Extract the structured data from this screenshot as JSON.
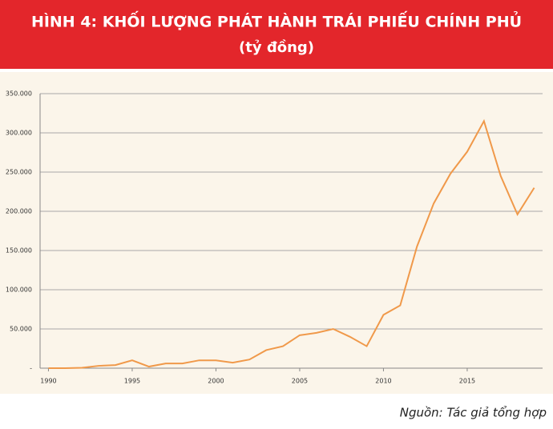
{
  "chart_data": {
    "type": "line",
    "title": "HÌNH 4: KHỐI LƯỢNG PHÁT HÀNH TRÁI PHIẾU CHÍNH PHỦ",
    "subtitle": "(tỷ đồng)",
    "source": "Nguồn: Tác giả tổng hợp",
    "x": [
      1990,
      1991,
      1992,
      1993,
      1994,
      1995,
      1996,
      1997,
      1998,
      1999,
      2000,
      2001,
      2002,
      2003,
      2004,
      2005,
      2006,
      2007,
      2008,
      2009,
      2010,
      2011,
      2012,
      2013,
      2014,
      2015,
      2016,
      2017,
      2018,
      2019
    ],
    "series": [
      {
        "color": "#f0994a",
        "values": [
          0,
          0,
          500,
          3000,
          4000,
          10000,
          2000,
          6000,
          6000,
          10000,
          10000,
          7000,
          11000,
          23000,
          28000,
          42000,
          45000,
          50000,
          40000,
          28000,
          68000,
          80000,
          155000,
          210000,
          248000,
          276000,
          315000,
          245000,
          196000,
          230000
        ]
      }
    ],
    "xlim": [
      1989.5,
      2019.5
    ],
    "xticks": [
      1990,
      1995,
      2000,
      2005,
      2010,
      2015
    ],
    "ylim": [
      0,
      350000
    ],
    "yticks": [
      {
        "value": 0,
        "label": "-"
      },
      {
        "value": 50000,
        "label": "50.000"
      },
      {
        "value": 100000,
        "label": "100.000"
      },
      {
        "value": 150000,
        "label": "150.000"
      },
      {
        "value": 200000,
        "label": "200.000"
      },
      {
        "value": 250000,
        "label": "250.000"
      },
      {
        "value": 300000,
        "label": "300.000"
      },
      {
        "value": 350000,
        "label": "350.000"
      }
    ],
    "grid": true
  }
}
